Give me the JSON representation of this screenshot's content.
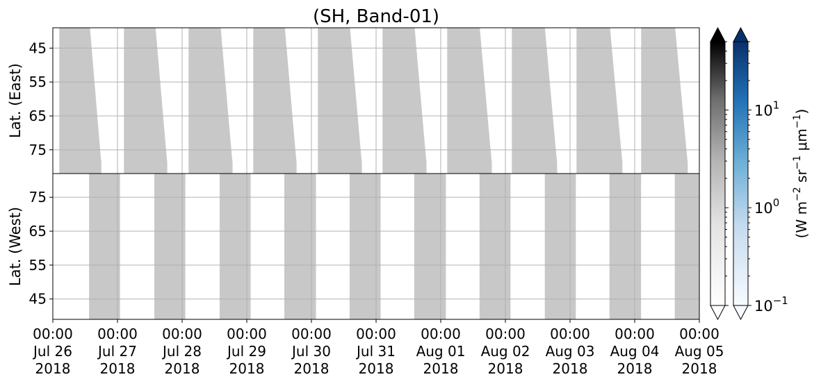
{
  "chart_data": {
    "type": "heatmap",
    "title": "(SH, Band-01)",
    "colorbar_label": "(W m$^{-2}$ sr$^{-1}$ $\\mu$m$^{-1}$)",
    "colorbar_scale": "log",
    "colorbar_range": [
      0.1,
      50
    ],
    "colorbar_ticks": [
      {
        "value": 0.1,
        "base": "10",
        "exp": "−1"
      },
      {
        "value": 1,
        "base": "10",
        "exp": "0"
      },
      {
        "value": 10,
        "base": "10",
        "exp": "1"
      }
    ],
    "colormaps": [
      "greys",
      "blues"
    ],
    "grid": true,
    "fill_color": "#c8c8c8",
    "x_ticks": [
      {
        "time": "00:00",
        "date": "Jul 26",
        "year": "2018"
      },
      {
        "time": "00:00",
        "date": "Jul 27",
        "year": "2018"
      },
      {
        "time": "00:00",
        "date": "Jul 28",
        "year": "2018"
      },
      {
        "time": "00:00",
        "date": "Jul 29",
        "year": "2018"
      },
      {
        "time": "00:00",
        "date": "Jul 30",
        "year": "2018"
      },
      {
        "time": "00:00",
        "date": "Jul 31",
        "year": "2018"
      },
      {
        "time": "00:00",
        "date": "Aug 01",
        "year": "2018"
      },
      {
        "time": "00:00",
        "date": "Aug 02",
        "year": "2018"
      },
      {
        "time": "00:00",
        "date": "Aug 03",
        "year": "2018"
      },
      {
        "time": "00:00",
        "date": "Aug 04",
        "year": "2018"
      },
      {
        "time": "00:00",
        "date": "Aug 05",
        "year": "2018"
      }
    ],
    "xlim": [
      "2018-07-26 00:00",
      "2018-08-05 00:00"
    ],
    "panels": [
      {
        "ylabel": "Lat. (East)",
        "ylim": [
          39,
          82
        ],
        "y_inverted": true,
        "yticks": [
          45,
          55,
          65,
          75
        ],
        "data_day_starts": [
          0.1,
          1.1,
          2.1,
          3.1,
          4.1,
          5.1,
          6.1,
          7.1,
          8.1,
          9.1
        ],
        "data_day_ends": [
          0.75,
          1.77,
          2.78,
          3.77,
          4.78,
          5.78,
          6.79,
          7.8,
          8.81,
          9.82
        ]
      },
      {
        "ylabel": "Lat. (West)",
        "ylim": [
          39,
          82
        ],
        "y_inverted": false,
        "yticks": [
          45,
          55,
          65,
          75
        ],
        "data_day_starts": [
          0.56,
          1.57,
          2.58,
          3.58,
          4.59,
          5.59,
          6.6,
          7.61,
          8.61,
          9.62
        ],
        "data_day_ends": [
          1.04,
          2.05,
          3.06,
          4.07,
          5.07,
          6.08,
          7.08,
          8.09,
          9.1
        ]
      }
    ]
  }
}
